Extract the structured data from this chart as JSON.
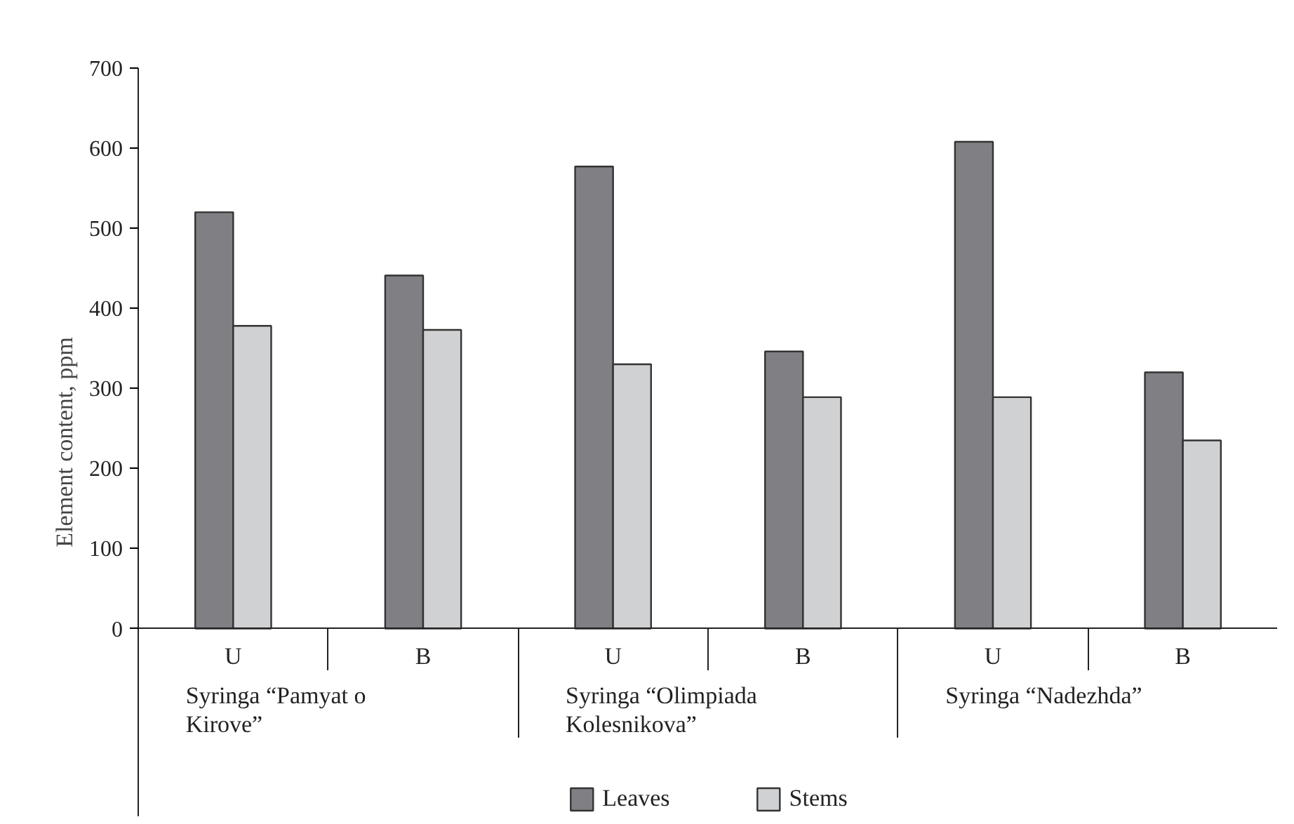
{
  "chart_data": {
    "type": "bar",
    "ylabel": "Element content, ppm",
    "categories": [
      "U",
      "B",
      "U",
      "B",
      "U",
      "B"
    ],
    "series": [
      {
        "name": "Leaves",
        "color": "#808084",
        "values": [
          520,
          441,
          577,
          346,
          608,
          320
        ]
      },
      {
        "name": "Stems",
        "color": "#d0d1d3",
        "values": [
          378,
          373,
          330,
          289,
          289,
          235
        ]
      }
    ],
    "annotations": [
      "Syringa “Pamyat o Kirove”",
      "Syringa “Olimpiada Kolesnikova”",
      "Syringa “Nadezhda”"
    ],
    "ylim": [
      0,
      700
    ],
    "yticks": [
      0,
      100,
      200,
      300,
      400,
      500,
      600,
      700
    ],
    "legend": "bottom"
  }
}
